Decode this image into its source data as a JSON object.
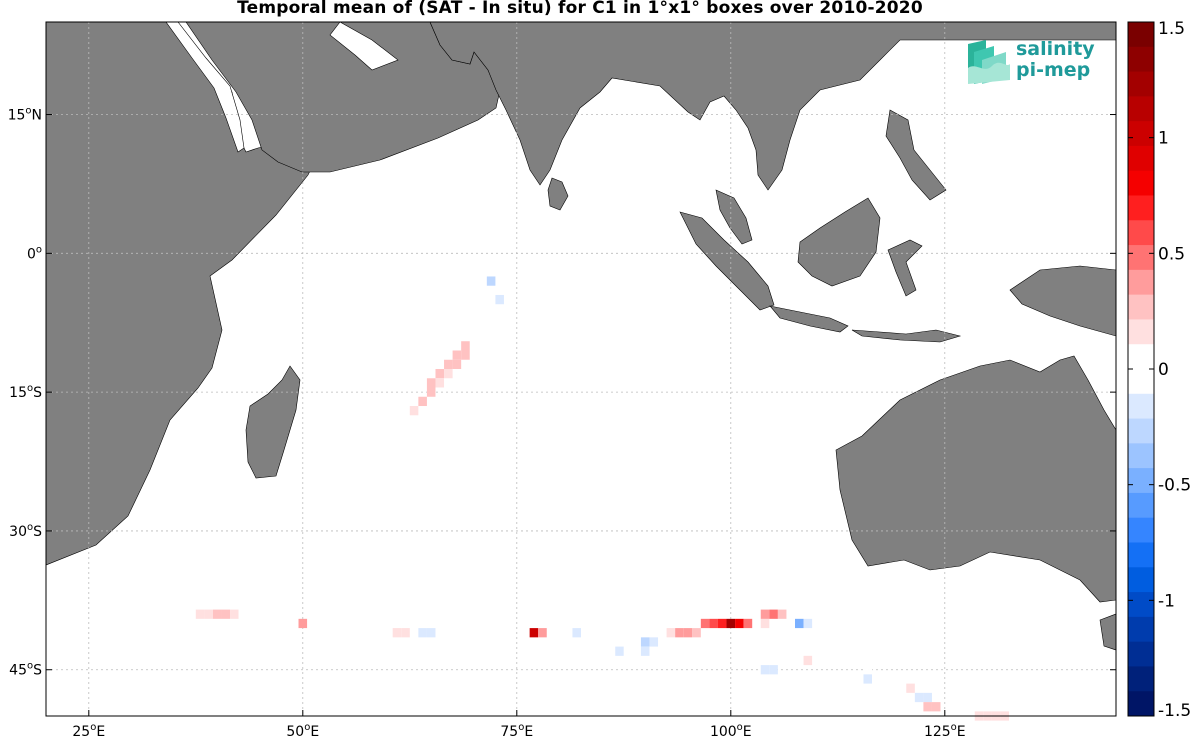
{
  "title": "Temporal mean of (SAT - In situ) for C1 in 1°x1° boxes over 2010-2020",
  "logo": {
    "line1": "salinity",
    "line2": "pi-mep"
  },
  "map": {
    "lon_range": [
      20,
      145
    ],
    "lat_range": [
      -50,
      25
    ],
    "land_color": "#808080",
    "ocean_color": "#ffffff",
    "grid": "dotted",
    "lon_ticks": [
      {
        "value": 25,
        "deg": "25",
        "hemi": "E"
      },
      {
        "value": 50,
        "deg": "50",
        "hemi": "E"
      },
      {
        "value": 75,
        "deg": "75",
        "hemi": "E"
      },
      {
        "value": 100,
        "deg": "100",
        "hemi": "E"
      },
      {
        "value": 125,
        "deg": "125",
        "hemi": "E"
      }
    ],
    "lat_ticks": [
      {
        "value": 15,
        "deg": "15",
        "hemi": "N"
      },
      {
        "value": 0,
        "deg": "0",
        "hemi": ""
      },
      {
        "value": -15,
        "deg": "15",
        "hemi": "S"
      },
      {
        "value": -30,
        "deg": "30",
        "hemi": "S"
      },
      {
        "value": -45,
        "deg": "45",
        "hemi": "S"
      }
    ]
  },
  "colorbar": {
    "range": [
      -1.5,
      1.5
    ],
    "labels": [
      "1.5",
      "1",
      "0.5",
      "0",
      "-0.5",
      "-1",
      "-1.5"
    ],
    "label_values": [
      1.5,
      1,
      0.5,
      0,
      -0.5,
      -1,
      -1.5
    ],
    "colors": [
      "#7a0000",
      "#8e0000",
      "#a30000",
      "#b80000",
      "#cc0000",
      "#e00000",
      "#f50000",
      "#ff1f1f",
      "#ff4a4a",
      "#ff7373",
      "#ff9c9c",
      "#ffc2c2",
      "#ffe0e0",
      "#ffffff",
      "#ffffff",
      "#dbe9ff",
      "#bdd7ff",
      "#9cc4ff",
      "#7ab0ff",
      "#579bff",
      "#3585ff",
      "#1470f5",
      "#005de0",
      "#004bc7",
      "#003cad",
      "#002e94",
      "#00217a",
      "#001566"
    ]
  },
  "chart_data": {
    "type": "heatmap",
    "title": "Temporal mean of (SAT - In situ) for C1 in 1°x1° boxes over 2010-2020",
    "value_range": [
      -1.5,
      1.5
    ],
    "cells": [
      {
        "lon": 72,
        "lat": -3,
        "v": -0.3
      },
      {
        "lon": 73,
        "lat": -5,
        "v": -0.15
      },
      {
        "lon": 69,
        "lat": -10,
        "v": 0.3
      },
      {
        "lon": 68,
        "lat": -11,
        "v": 0.3
      },
      {
        "lon": 69,
        "lat": -11,
        "v": 0.25
      },
      {
        "lon": 67,
        "lat": -12,
        "v": 0.25
      },
      {
        "lon": 68,
        "lat": -12,
        "v": 0.25
      },
      {
        "lon": 66,
        "lat": -13,
        "v": 0.3
      },
      {
        "lon": 67,
        "lat": -13,
        "v": 0.2
      },
      {
        "lon": 65,
        "lat": -14,
        "v": 0.25
      },
      {
        "lon": 66,
        "lat": -14,
        "v": 0.2
      },
      {
        "lon": 65,
        "lat": -15,
        "v": 0.3
      },
      {
        "lon": 64,
        "lat": -16,
        "v": 0.25
      },
      {
        "lon": 63,
        "lat": -17,
        "v": 0.2
      },
      {
        "lon": 38,
        "lat": -39,
        "v": 0.2
      },
      {
        "lon": 39,
        "lat": -39,
        "v": 0.15
      },
      {
        "lon": 40,
        "lat": -39,
        "v": 0.25
      },
      {
        "lon": 41,
        "lat": -39,
        "v": 0.25
      },
      {
        "lon": 42,
        "lat": -39,
        "v": 0.15
      },
      {
        "lon": 43,
        "lat": -39,
        "v": -0.1
      },
      {
        "lon": 50,
        "lat": -40,
        "v": 0.4
      },
      {
        "lon": 61,
        "lat": -41,
        "v": 0.15
      },
      {
        "lon": 62,
        "lat": -41,
        "v": 0.15
      },
      {
        "lon": 64,
        "lat": -41,
        "v": -0.2
      },
      {
        "lon": 65,
        "lat": -41,
        "v": -0.2
      },
      {
        "lon": 77,
        "lat": -41,
        "v": 1.0
      },
      {
        "lon": 78,
        "lat": -41,
        "v": 0.4
      },
      {
        "lon": 82,
        "lat": -41,
        "v": -0.15
      },
      {
        "lon": 87,
        "lat": -43,
        "v": -0.15
      },
      {
        "lon": 88,
        "lat": -43,
        "v": -0.1
      },
      {
        "lon": 90,
        "lat": -42,
        "v": -0.3
      },
      {
        "lon": 91,
        "lat": -42,
        "v": -0.2
      },
      {
        "lon": 90,
        "lat": -43,
        "v": -0.15
      },
      {
        "lon": 93,
        "lat": -41,
        "v": 0.2
      },
      {
        "lon": 94,
        "lat": -41,
        "v": 0.35
      },
      {
        "lon": 95,
        "lat": -41,
        "v": 0.4
      },
      {
        "lon": 96,
        "lat": -41,
        "v": 0.3
      },
      {
        "lon": 97,
        "lat": -40,
        "v": 0.5
      },
      {
        "lon": 98,
        "lat": -40,
        "v": 0.6
      },
      {
        "lon": 99,
        "lat": -40,
        "v": 0.7
      },
      {
        "lon": 100,
        "lat": -40,
        "v": 1.2
      },
      {
        "lon": 101,
        "lat": -40,
        "v": 0.8
      },
      {
        "lon": 102,
        "lat": -40,
        "v": 0.5
      },
      {
        "lon": 104,
        "lat": -40,
        "v": 0.15
      },
      {
        "lon": 104,
        "lat": -39,
        "v": 0.4
      },
      {
        "lon": 105,
        "lat": -39,
        "v": 0.45
      },
      {
        "lon": 106,
        "lat": -39,
        "v": 0.3
      },
      {
        "lon": 108,
        "lat": -40,
        "v": -0.5
      },
      {
        "lon": 109,
        "lat": -40,
        "v": -0.2
      },
      {
        "lon": 106,
        "lat": -43,
        "v": -0.1
      },
      {
        "lon": 107,
        "lat": -43,
        "v": -0.1
      },
      {
        "lon": 109,
        "lat": -44,
        "v": 0.2
      },
      {
        "lon": 104,
        "lat": -45,
        "v": -0.15
      },
      {
        "lon": 105,
        "lat": -45,
        "v": -0.15
      },
      {
        "lon": 107,
        "lat": -46,
        "v": -0.1
      },
      {
        "lon": 116,
        "lat": -45,
        "v": -0.1
      },
      {
        "lon": 116,
        "lat": -46,
        "v": -0.15
      },
      {
        "lon": 117,
        "lat": -46,
        "v": -0.1
      },
      {
        "lon": 121,
        "lat": -47,
        "v": 0.2
      },
      {
        "lon": 122,
        "lat": -48,
        "v": -0.2
      },
      {
        "lon": 123,
        "lat": -48,
        "v": -0.15
      },
      {
        "lon": 123,
        "lat": -49,
        "v": 0.3
      },
      {
        "lon": 124,
        "lat": -49,
        "v": 0.25
      },
      {
        "lon": 128,
        "lat": -50,
        "v": 0.1
      },
      {
        "lon": 129,
        "lat": -50,
        "v": 0.2
      },
      {
        "lon": 130,
        "lat": -50,
        "v": 0.2
      },
      {
        "lon": 131,
        "lat": -50,
        "v": 0.15
      },
      {
        "lon": 132,
        "lat": -50,
        "v": 0.2
      }
    ]
  }
}
